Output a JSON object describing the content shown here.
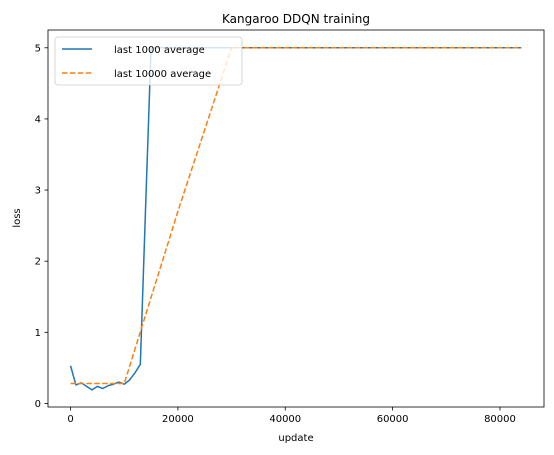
{
  "chart_data": {
    "type": "line",
    "title": "Kangaroo DDQN training",
    "xlabel": "update",
    "ylabel": "loss",
    "xlim": [
      -4200,
      88200
    ],
    "ylim": [
      -0.05,
      5.25
    ],
    "xticks": [
      0,
      20000,
      40000,
      60000,
      80000
    ],
    "xtick_labels": [
      "0",
      "20000",
      "40000",
      "60000",
      "80000"
    ],
    "yticks": [
      0,
      1,
      2,
      3,
      4,
      5
    ],
    "ytick_labels": [
      "0",
      "1",
      "2",
      "3",
      "4",
      "5"
    ],
    "grid": false,
    "legend_position": "top-left",
    "series": [
      {
        "name": "last 1000 average",
        "color": "#1f77b4",
        "style": "solid",
        "x": [
          0,
          1000,
          2000,
          3000,
          4000,
          5000,
          6000,
          7000,
          8000,
          9000,
          10000,
          11000,
          12000,
          13000,
          14000,
          15000,
          16000,
          84000
        ],
        "y": [
          0.53,
          0.26,
          0.29,
          0.24,
          0.19,
          0.24,
          0.21,
          0.25,
          0.27,
          0.3,
          0.27,
          0.33,
          0.43,
          0.55,
          2.8,
          5.0,
          5.0,
          5.0
        ]
      },
      {
        "name": "last 10000 average",
        "color": "#ff7f0e",
        "style": "dashed",
        "x": [
          0,
          10000,
          20000,
          30000,
          84000
        ],
        "y": [
          0.28,
          0.28,
          2.7,
          5.0,
          5.0
        ]
      }
    ]
  }
}
